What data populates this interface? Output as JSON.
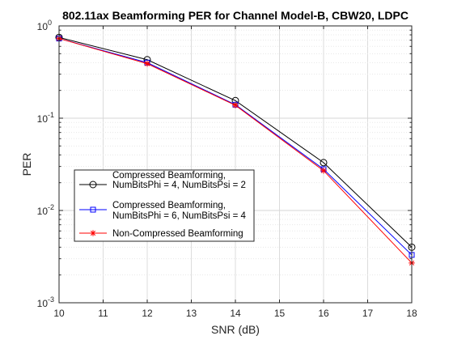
{
  "chart_data": {
    "type": "line",
    "title": "802.11ax Beamforming PER for Channel Model-B, CBW20, LDPC",
    "xlabel": "SNR (dB)",
    "ylabel": "PER",
    "xlim": [
      10,
      18
    ],
    "ylim": [
      0.001,
      1
    ],
    "yscale": "log",
    "grid": "major and minor",
    "x_ticks": [
      "10",
      "11",
      "12",
      "13",
      "14",
      "15",
      "16",
      "17",
      "18"
    ],
    "y_ticks": [
      {
        "base": "10",
        "exp": "0"
      },
      {
        "base": "10",
        "exp": "-1"
      },
      {
        "base": "10",
        "exp": "-2"
      },
      {
        "base": "10",
        "exp": "-3"
      }
    ],
    "legend_position": "lower-left",
    "x": [
      10,
      12,
      14,
      16,
      18
    ],
    "series": [
      {
        "legend": [
          "Compressed Beamforming,",
          "NumBitsPhi = 4, NumBitsPsi = 2"
        ],
        "color": "#000000",
        "marker": "circle",
        "values": [
          0.75,
          0.43,
          0.155,
          0.033,
          0.004
        ]
      },
      {
        "legend": [
          "Compressed Beamforming,",
          "NumBitsPhi = 6, NumBitsPsi = 4"
        ],
        "color": "#0000ff",
        "marker": "square",
        "values": [
          0.73,
          0.4,
          0.14,
          0.028,
          0.0033
        ]
      },
      {
        "legend": [
          "Non-Compressed Beamforming"
        ],
        "color": "#ff0000",
        "marker": "asterisk",
        "values": [
          0.73,
          0.39,
          0.138,
          0.027,
          0.0027
        ]
      }
    ]
  }
}
